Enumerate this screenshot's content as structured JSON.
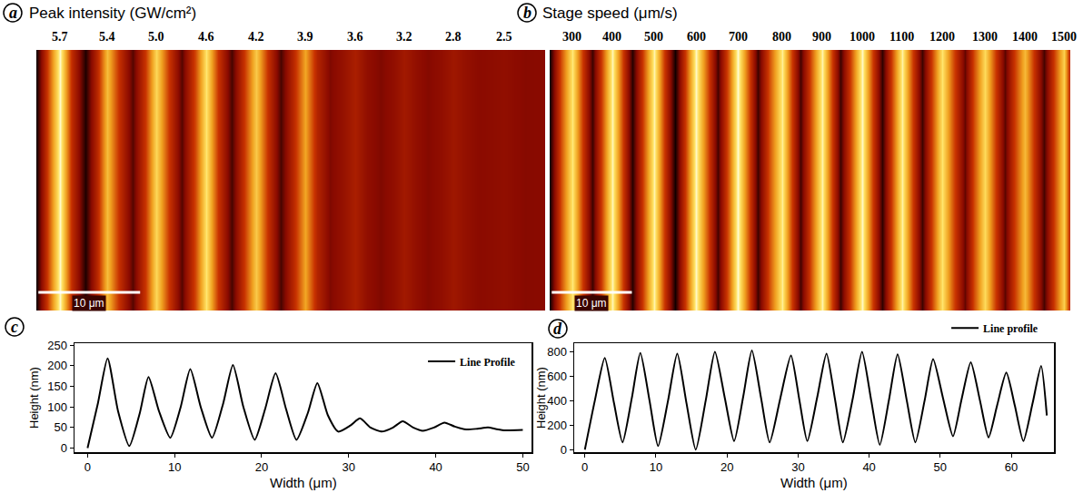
{
  "chart_data": [
    {
      "type": "heatmap",
      "panel": "a",
      "title": "Peak intensity (GW/cm²)",
      "x": [
        0,
        1.2,
        2.3,
        3.5,
        4.8,
        6,
        7,
        8.2,
        9.5,
        10.7,
        11.8,
        13,
        14.3,
        15.6,
        16.7,
        17.9,
        19.2,
        20.4,
        21.6,
        22.8,
        24,
        25.3,
        26.4,
        27.6,
        28.8,
        30.2,
        31.3,
        32.5,
        33.8,
        35.1,
        36.2,
        37.4,
        38.5,
        39.8,
        41,
        42.2,
        43.5,
        44.8,
        46,
        47,
        48,
        50
      ],
      "values": [
        0,
        110,
        218,
        90,
        5,
        85,
        173,
        90,
        25,
        100,
        192,
        100,
        25,
        110,
        202,
        100,
        20,
        95,
        182,
        95,
        20,
        85,
        158,
        80,
        40,
        55,
        72,
        50,
        40,
        50,
        65,
        50,
        42,
        50,
        62,
        52,
        45,
        47,
        50,
        46,
        43,
        44
      ],
      "xlim": [
        0,
        50
      ],
      "zlim": [
        0,
        220
      ],
      "tick_labels": false,
      "stripe_labels": [
        {
          "x": 2.3,
          "label": "5.7"
        },
        {
          "x": 7,
          "label": "5.4"
        },
        {
          "x": 11.8,
          "label": "5.0"
        },
        {
          "x": 16.7,
          "label": "4.6"
        },
        {
          "x": 21.6,
          "label": "4.2"
        },
        {
          "x": 26.4,
          "label": "3.9"
        },
        {
          "x": 31.3,
          "label": "3.6"
        },
        {
          "x": 36.2,
          "label": "3.2"
        },
        {
          "x": 41,
          "label": "2.8"
        },
        {
          "x": 46,
          "label": "2.5"
        }
      ],
      "scalebar": {
        "length": 10,
        "label": "10 μm"
      }
    },
    {
      "type": "heatmap",
      "panel": "b",
      "title": "Stage speed (μm/s)",
      "x": [
        0,
        1.4,
        2.8,
        4.1,
        5.3,
        6.6,
        7.8,
        9.1,
        10.3,
        11.7,
        13,
        14.3,
        15.6,
        17,
        18.3,
        19.7,
        21,
        22.3,
        23.5,
        24.8,
        26,
        27.5,
        29,
        30.2,
        31.3,
        32.7,
        34,
        35.2,
        36.3,
        37.7,
        39,
        40.3,
        41.5,
        42.8,
        44,
        45.3,
        46.5,
        47.8,
        49,
        50.4,
        51.8,
        53,
        54.3,
        55.6,
        56.8,
        58,
        59.3,
        60.5,
        61.7,
        63,
        64.2,
        65
      ],
      "values": [
        0,
        400,
        750,
        380,
        60,
        420,
        790,
        400,
        30,
        400,
        785,
        380,
        0,
        400,
        800,
        420,
        70,
        440,
        810,
        420,
        60,
        420,
        770,
        400,
        70,
        430,
        785,
        410,
        60,
        420,
        800,
        400,
        40,
        410,
        780,
        400,
        60,
        400,
        740,
        420,
        110,
        410,
        715,
        400,
        100,
        360,
        630,
        360,
        70,
        380,
        685,
        280
      ],
      "xlim": [
        0,
        65
      ],
      "zlim": [
        0,
        810
      ],
      "tick_labels": false,
      "stripe_labels": [
        {
          "x": 2.8,
          "label": "300"
        },
        {
          "x": 7.8,
          "label": "400"
        },
        {
          "x": 13,
          "label": "500"
        },
        {
          "x": 18.3,
          "label": "600"
        },
        {
          "x": 23.5,
          "label": "700"
        },
        {
          "x": 29,
          "label": "800"
        },
        {
          "x": 34,
          "label": "900"
        },
        {
          "x": 39,
          "label": "1000"
        },
        {
          "x": 44,
          "label": "1100"
        },
        {
          "x": 49,
          "label": "1200"
        },
        {
          "x": 54.3,
          "label": "1300"
        },
        {
          "x": 59.3,
          "label": "1400"
        },
        {
          "x": 64.2,
          "label": "1500"
        }
      ],
      "scalebar": {
        "length": 10,
        "label": "10 μm"
      }
    },
    {
      "type": "line",
      "panel": "c",
      "xlabel": "Width (μm)",
      "ylabel": "Height (nm)",
      "x": [
        0,
        1.2,
        2.3,
        3.5,
        4.8,
        6,
        7,
        8.2,
        9.5,
        10.7,
        11.8,
        13,
        14.3,
        15.6,
        16.7,
        17.9,
        19.2,
        20.4,
        21.6,
        22.8,
        24,
        25.3,
        26.4,
        27.6,
        28.8,
        30.2,
        31.3,
        32.5,
        33.8,
        35.1,
        36.2,
        37.4,
        38.5,
        39.8,
        41,
        42.2,
        43.5,
        44.8,
        46,
        47,
        48,
        50
      ],
      "series": [
        {
          "name": "Line Profile",
          "color": "#000000",
          "values": [
            0,
            110,
            218,
            90,
            5,
            85,
            173,
            90,
            25,
            100,
            192,
            100,
            25,
            110,
            202,
            100,
            20,
            95,
            182,
            95,
            20,
            85,
            158,
            80,
            40,
            55,
            72,
            50,
            40,
            50,
            65,
            50,
            42,
            50,
            62,
            52,
            45,
            47,
            50,
            46,
            43,
            44
          ]
        }
      ],
      "xlim": [
        -1.5,
        51
      ],
      "ylim": [
        -10,
        255
      ],
      "xticks": [
        0,
        10,
        20,
        30,
        40,
        50
      ],
      "yticks": [
        0,
        50,
        100,
        150,
        200,
        250
      ],
      "grid": false,
      "legend": "upper right"
    },
    {
      "type": "line",
      "panel": "d",
      "xlabel": "Width (μm)",
      "ylabel": "Height (nm)",
      "x": [
        0,
        1.4,
        2.8,
        4.1,
        5.3,
        6.6,
        7.8,
        9.1,
        10.3,
        11.7,
        13,
        14.3,
        15.6,
        17,
        18.3,
        19.7,
        21,
        22.3,
        23.5,
        24.8,
        26,
        27.5,
        29,
        30.2,
        31.3,
        32.7,
        34,
        35.2,
        36.3,
        37.7,
        39,
        40.3,
        41.5,
        42.8,
        44,
        45.3,
        46.5,
        47.8,
        49,
        50.4,
        51.8,
        53,
        54.3,
        55.6,
        56.8,
        58,
        59.3,
        60.5,
        61.7,
        63,
        64.2,
        65
      ],
      "series": [
        {
          "name": "Line profile",
          "color": "#000000",
          "values": [
            0,
            400,
            750,
            380,
            60,
            420,
            790,
            400,
            30,
            400,
            785,
            380,
            0,
            400,
            800,
            420,
            70,
            440,
            810,
            420,
            60,
            420,
            770,
            400,
            70,
            430,
            785,
            410,
            60,
            420,
            800,
            400,
            40,
            410,
            780,
            400,
            60,
            400,
            740,
            420,
            110,
            410,
            715,
            400,
            100,
            360,
            630,
            360,
            70,
            380,
            685,
            280
          ]
        }
      ],
      "xlim": [
        -1.5,
        66
      ],
      "ylim": [
        -20,
        870
      ],
      "xticks": [
        0,
        10,
        20,
        30,
        40,
        50,
        60
      ],
      "yticks": [
        0,
        200,
        400,
        600,
        800
      ],
      "grid": false,
      "legend": "above right"
    }
  ]
}
